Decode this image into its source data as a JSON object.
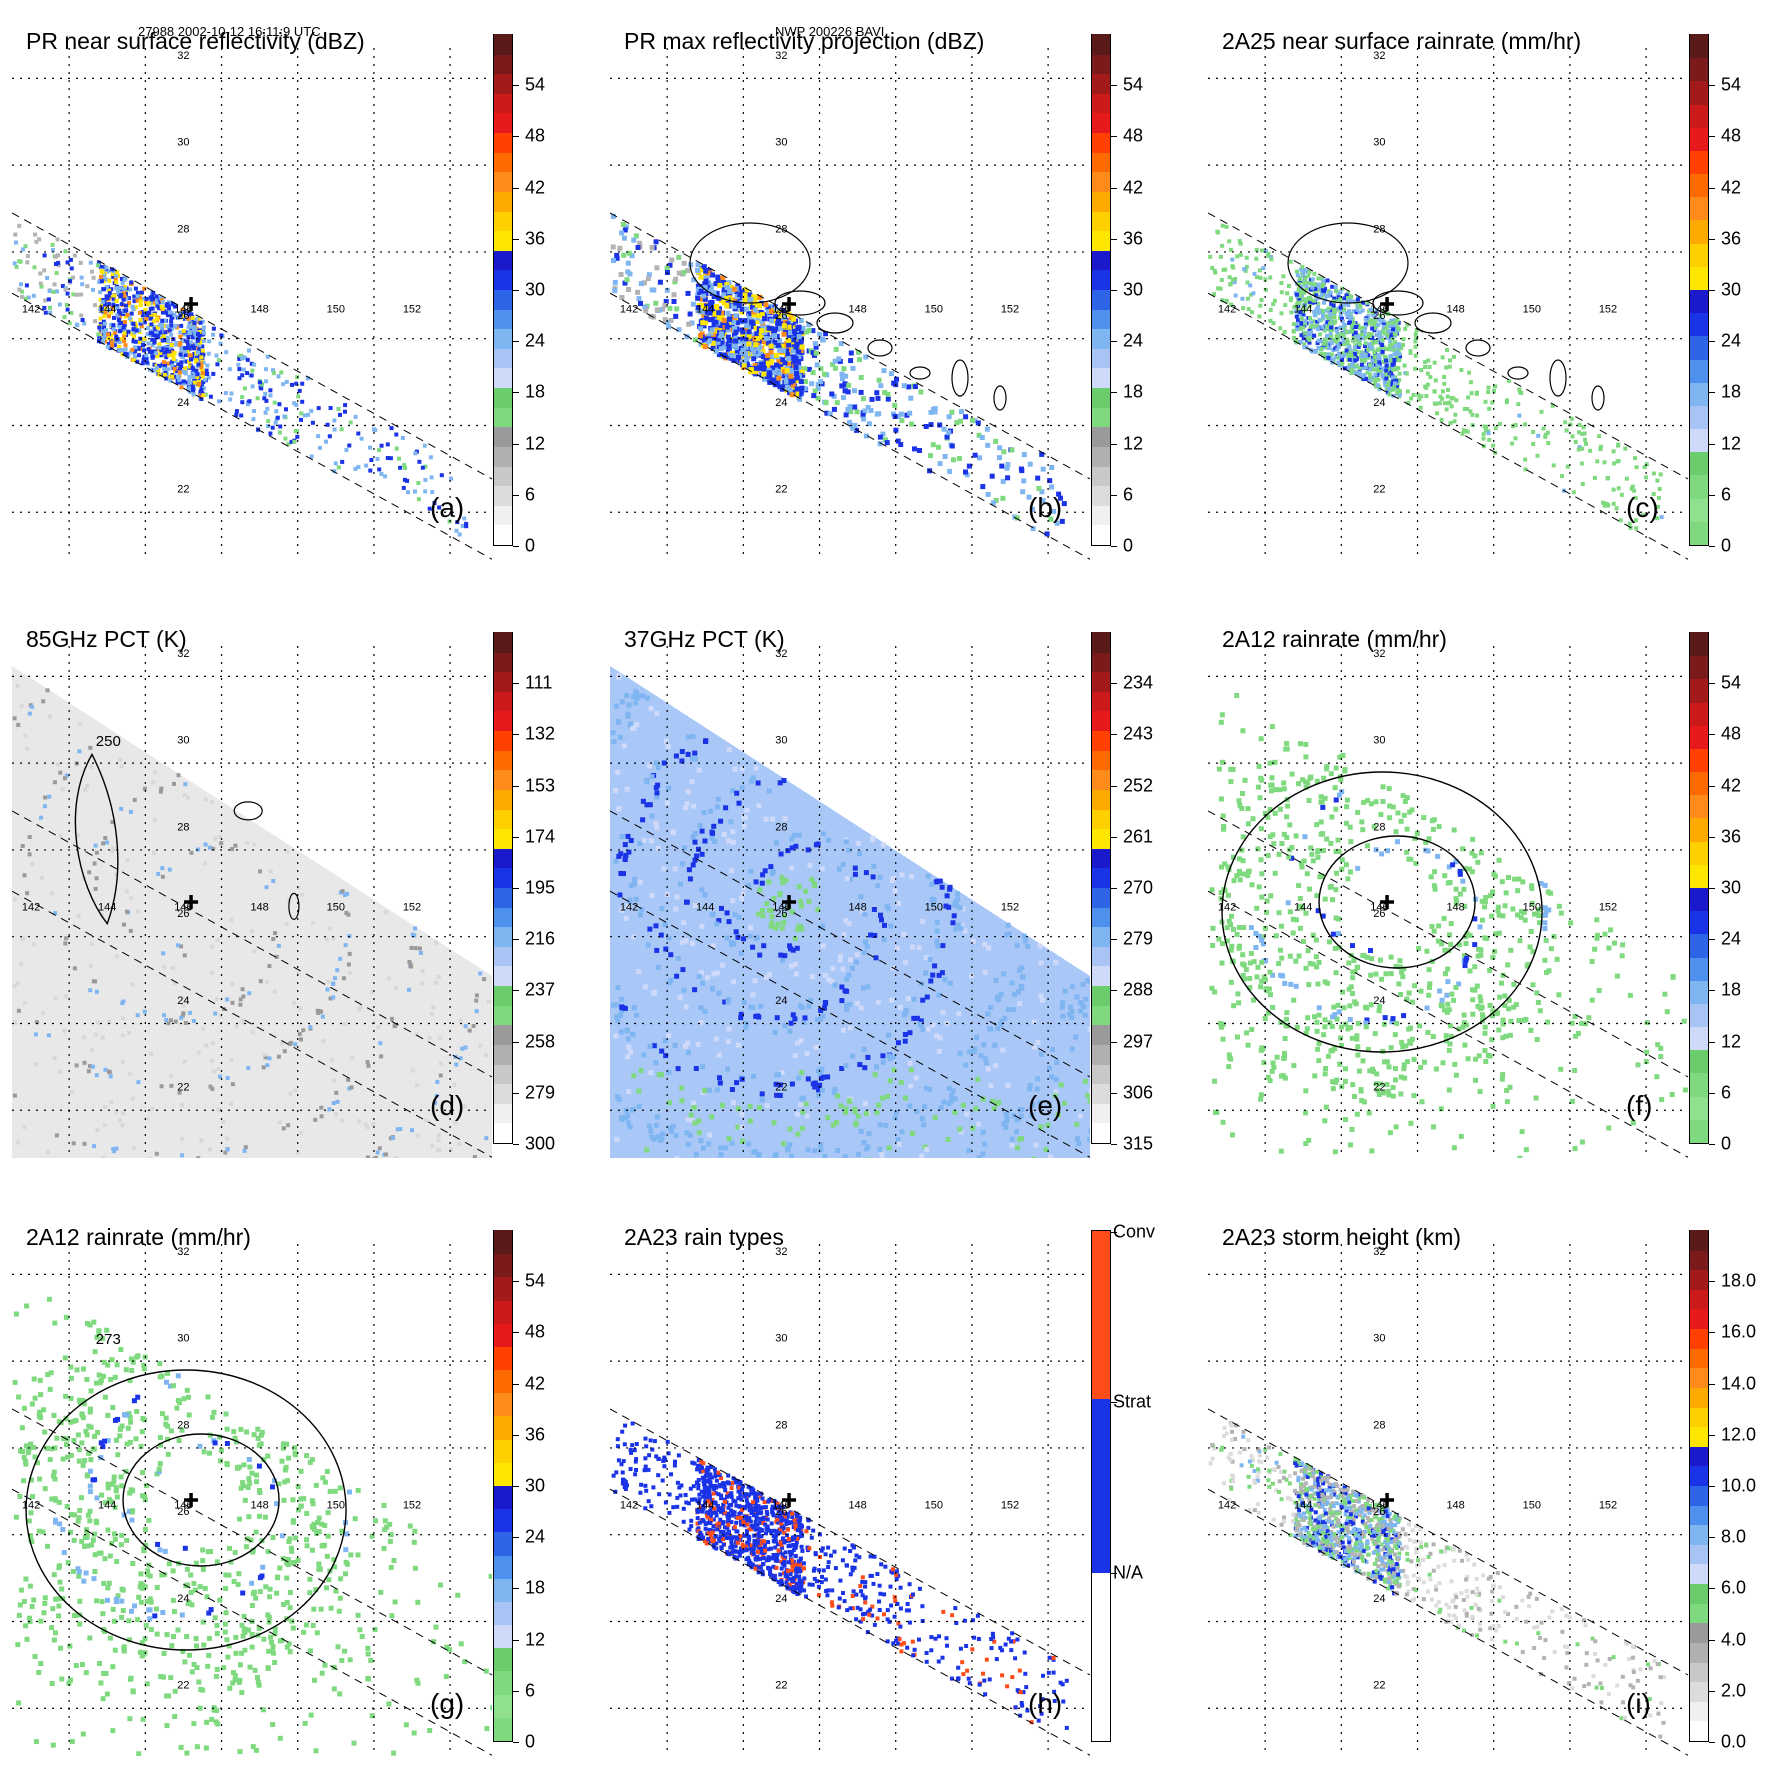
{
  "header": {
    "left": "27988 2002-10-12 16:11:9 UTC",
    "center": "NWP 200226 BAVI"
  },
  "grid": {
    "lon_labels": [
      "142",
      "144",
      "146",
      "148",
      "150",
      "152"
    ],
    "lat_labels": [
      "32",
      "30",
      "28",
      "26",
      "24",
      "22"
    ]
  },
  "colors": {
    "green": "#7fd97f",
    "lightblue": "#7fb6f2",
    "blue": "#1a33e6",
    "yellow": "#ffe600",
    "orange": "#ff8c1a",
    "red": "#e61a1a",
    "gray": "#b3b3b3",
    "white": "#ffffff"
  },
  "panels": [
    {
      "id": "a",
      "label": "(a)",
      "title": "PR near surface reflectivity (dBZ)",
      "swath": "pr",
      "field": "pr_near",
      "scale": "dbz",
      "colorbar": [
        "0",
        "6",
        "12",
        "18",
        "24",
        "30",
        "36",
        "42",
        "48",
        "54"
      ]
    },
    {
      "id": "b",
      "label": "(b)",
      "title": "PR max reflectivity projection (dBZ)",
      "swath": "pr",
      "field": "pr_max",
      "scale": "dbz",
      "colorbar": [
        "0",
        "6",
        "12",
        "18",
        "24",
        "30",
        "36",
        "42",
        "48",
        "54"
      ]
    },
    {
      "id": "c",
      "label": "(c)",
      "title": "2A25 near surface rainrate (mm/hr)",
      "swath": "pr",
      "field": "pr_rain",
      "scale": "rain",
      "colorbar": [
        "0",
        "6",
        "12",
        "18",
        "24",
        "30",
        "36",
        "42",
        "48",
        "54"
      ]
    },
    {
      "id": "d",
      "label": "(d)",
      "title": "85GHz PCT (K)",
      "swath": "tmi",
      "field": "tmi85",
      "scale": "pct",
      "contour_label": "250",
      "colorbar": [
        "300",
        "279",
        "258",
        "237",
        "216",
        "195",
        "174",
        "153",
        "132",
        "111"
      ]
    },
    {
      "id": "e",
      "label": "(e)",
      "title": "37GHz PCT (K)",
      "swath": "tmi",
      "field": "tmi37",
      "scale": "pct",
      "colorbar": [
        "315",
        "306",
        "297",
        "288",
        "279",
        "270",
        "261",
        "252",
        "243",
        "234"
      ]
    },
    {
      "id": "f",
      "label": "(f)",
      "title": "2A12 rainrate (mm/hr)",
      "swath": "tmi",
      "field": "rain2a12",
      "scale": "rain",
      "colorbar": [
        "0",
        "6",
        "12",
        "18",
        "24",
        "30",
        "36",
        "42",
        "48",
        "54"
      ]
    },
    {
      "id": "g",
      "label": "(g)",
      "title": "2A12 rainrate (mm/hr)",
      "swath": "tmi",
      "field": "rain2a12b",
      "scale": "rain",
      "contour_label": "273",
      "colorbar": [
        "0",
        "6",
        "12",
        "18",
        "24",
        "30",
        "36",
        "42",
        "48",
        "54"
      ]
    },
    {
      "id": "h",
      "label": "(h)",
      "title": "2A23 rain types",
      "swath": "pr",
      "field": "raintype",
      "scale": "type",
      "colorbar": [
        "N/A",
        "Strat",
        "Conv"
      ]
    },
    {
      "id": "i",
      "label": "(i)",
      "title": "2A23 storm height (km)",
      "swath": "pr",
      "field": "stormh",
      "scale": "height",
      "colorbar": [
        "0.0",
        "2.0",
        "4.0",
        "6.0",
        "8.0",
        "10.0",
        "12.0",
        "14.0",
        "16.0",
        "18.0"
      ]
    }
  ]
}
